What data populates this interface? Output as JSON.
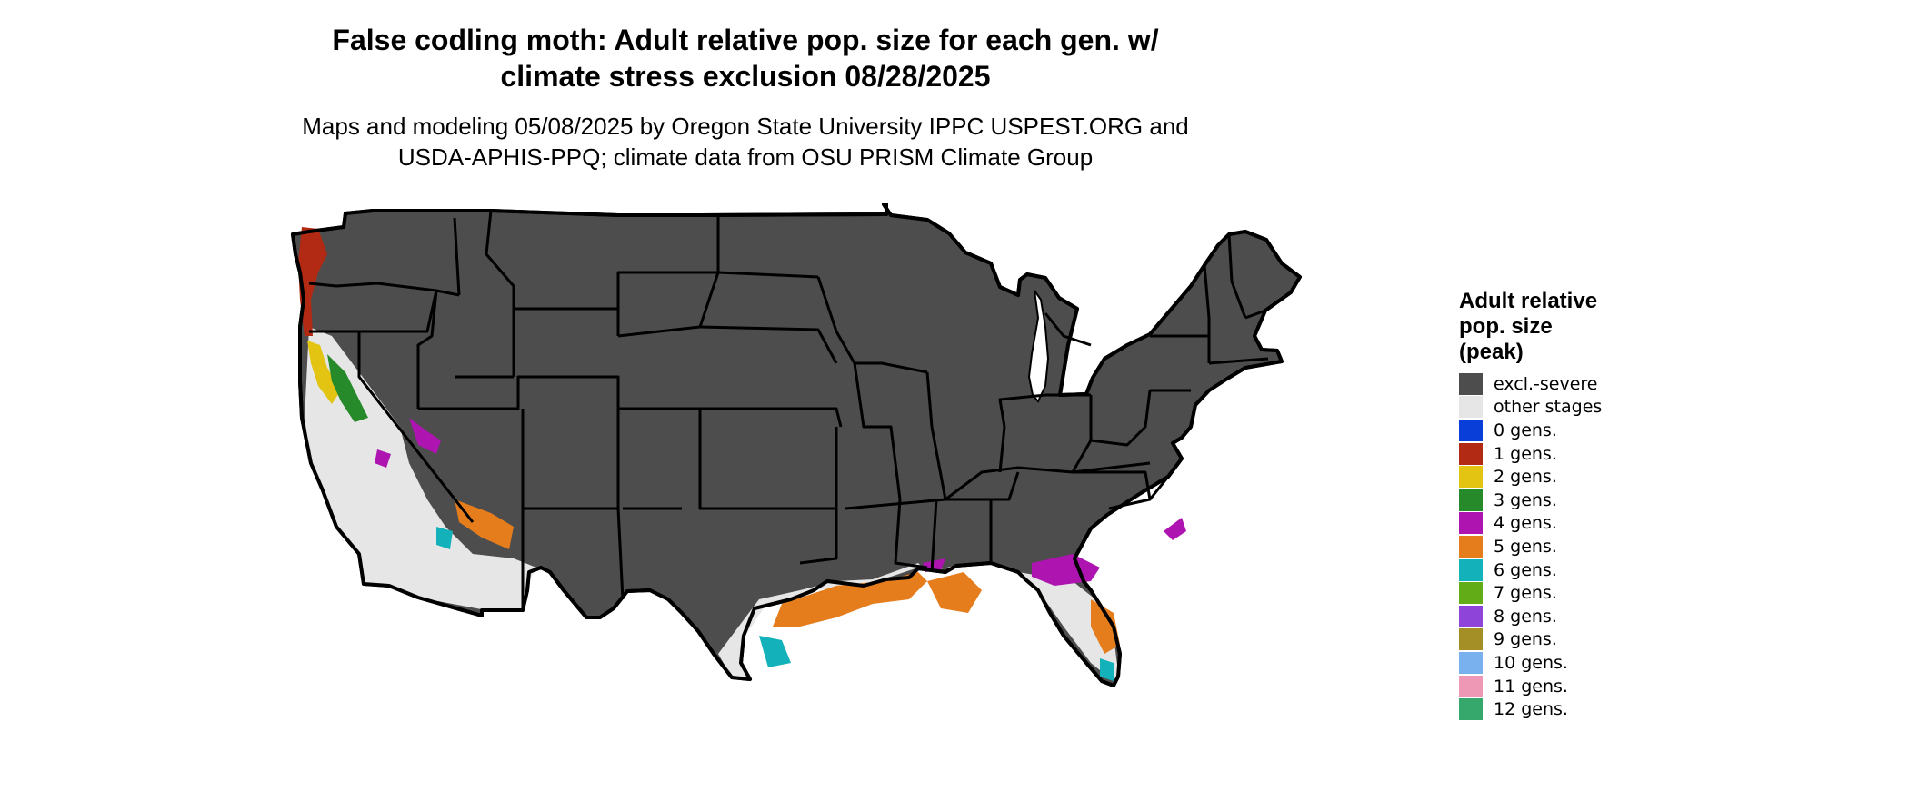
{
  "header": {
    "title_line1": "False codling moth: Adult relative pop. size for each gen. w/",
    "title_line2": "climate stress exclusion 08/28/2025",
    "subtitle_line1": "Maps and modeling 05/08/2025 by Oregon State University IPPC USPEST.ORG and",
    "subtitle_line2": "USDA-APHIS-PPQ; climate data from OSU PRISM Climate Group"
  },
  "colors": {
    "excluded": "#4d4d4d",
    "other": "#e6e6e6",
    "border": "#000000"
  },
  "legend": {
    "title_line1": "Adult relative",
    "title_line2": "pop. size",
    "title_line3": "(peak)",
    "items": [
      {
        "label": "excl.-severe",
        "color": "#4d4d4d"
      },
      {
        "label": "other stages",
        "color": "#e6e6e6"
      },
      {
        "label": "0 gens.",
        "color": "#0a3ed8"
      },
      {
        "label": "1 gens.",
        "color": "#b32a14"
      },
      {
        "label": "2 gens.",
        "color": "#e3c412"
      },
      {
        "label": "3 gens.",
        "color": "#278a2a"
      },
      {
        "label": "4 gens.",
        "color": "#ad14b0"
      },
      {
        "label": "5 gens.",
        "color": "#e57d1c"
      },
      {
        "label": "6 gens.",
        "color": "#13b1ba"
      },
      {
        "label": "7 gens.",
        "color": "#62ad17"
      },
      {
        "label": "8 gens.",
        "color": "#8e44d9"
      },
      {
        "label": "9 gens.",
        "color": "#a48f26"
      },
      {
        "label": "10 gens.",
        "color": "#79b1ef"
      },
      {
        "label": "11 gens.",
        "color": "#ef98b6"
      },
      {
        "label": "12 gens.",
        "color": "#36a86c"
      }
    ]
  }
}
